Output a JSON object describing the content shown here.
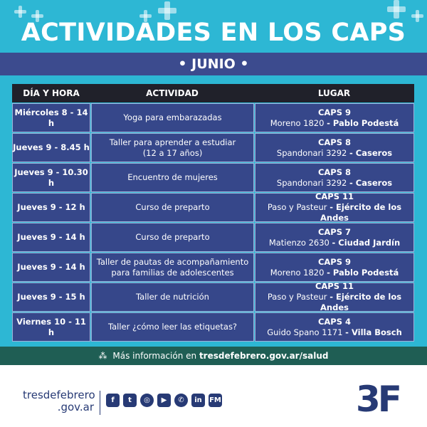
{
  "header": {
    "title": "ACTIVIDADES EN LOS CAPS",
    "month": "• JUNIO •"
  },
  "table": {
    "columns": [
      "DÍA Y HORA",
      "ACTIVIDAD",
      "LUGAR"
    ],
    "rows": [
      {
        "day": "Miércoles 8 - 14 h",
        "activity": [
          "Yoga para embarazadas"
        ],
        "caps": "CAPS 9",
        "address": "Moreno 1820",
        "locality": "- Pablo Podestá"
      },
      {
        "day": "Jueves 9 - 8.45 h",
        "activity": [
          "Taller para aprender a estudiar",
          "(12 a 17 años)"
        ],
        "caps": "CAPS 8",
        "address": "Spandonari 3292",
        "locality": "- Caseros"
      },
      {
        "day": "Jueves 9 - 10.30 h",
        "activity": [
          "Encuentro de mujeres"
        ],
        "caps": "CAPS 8",
        "address": "Spandonari 3292",
        "locality": "- Caseros"
      },
      {
        "day": "Jueves 9 - 12 h",
        "activity": [
          "Curso de preparto"
        ],
        "caps": "CAPS 11",
        "address": "Paso y Pasteur",
        "locality": "- Ejército de los Andes"
      },
      {
        "day": "Jueves 9 - 14 h",
        "activity": [
          "Curso de preparto"
        ],
        "caps": "CAPS 7",
        "address": "Matienzo 2630",
        "locality": "- Ciudad Jardín"
      },
      {
        "day": "Jueves 9 - 14 h",
        "activity": [
          "Taller de pautas de acompañamiento",
          "para familias de adolescentes"
        ],
        "caps": "CAPS 9",
        "address": "Moreno 1820",
        "locality": "- Pablo Podestá"
      },
      {
        "day": "Jueves 9 - 15 h",
        "activity": [
          "Taller de nutrición"
        ],
        "caps": "CAPS 11",
        "address": "Paso y Pasteur",
        "locality": "- Ejército de los Andes"
      },
      {
        "day": "Viernes 10 - 11 h",
        "activity": [
          "Taller ¿cómo leer las etiquetas?"
        ],
        "caps": "CAPS 4",
        "address": "Guido Spano 1171",
        "locality": "- Villa Bosch"
      }
    ]
  },
  "info": {
    "text": "Más información en",
    "link": "tresdefebrero.gov.ar/salud",
    "icon": "pointer-click-icon"
  },
  "footer": {
    "brand": "tresdefebrero",
    "brand_sub": ".gov.ar",
    "social": [
      {
        "name": "facebook-icon",
        "glyph": "f"
      },
      {
        "name": "twitter-icon",
        "glyph": "t"
      },
      {
        "name": "instagram-icon",
        "glyph": "◎"
      },
      {
        "name": "youtube-icon",
        "glyph": "▶"
      },
      {
        "name": "whatsapp-icon",
        "glyph": "✆"
      },
      {
        "name": "linkedin-icon",
        "glyph": "in"
      },
      {
        "name": "fm-radio-icon",
        "glyph": "FM"
      }
    ],
    "logo": "3F"
  },
  "colors": {
    "background": "#2db7d4",
    "navy": "#36478a",
    "header_dark": "#20212a",
    "info_bar": "#1f5e54",
    "brand": "#273a75"
  }
}
